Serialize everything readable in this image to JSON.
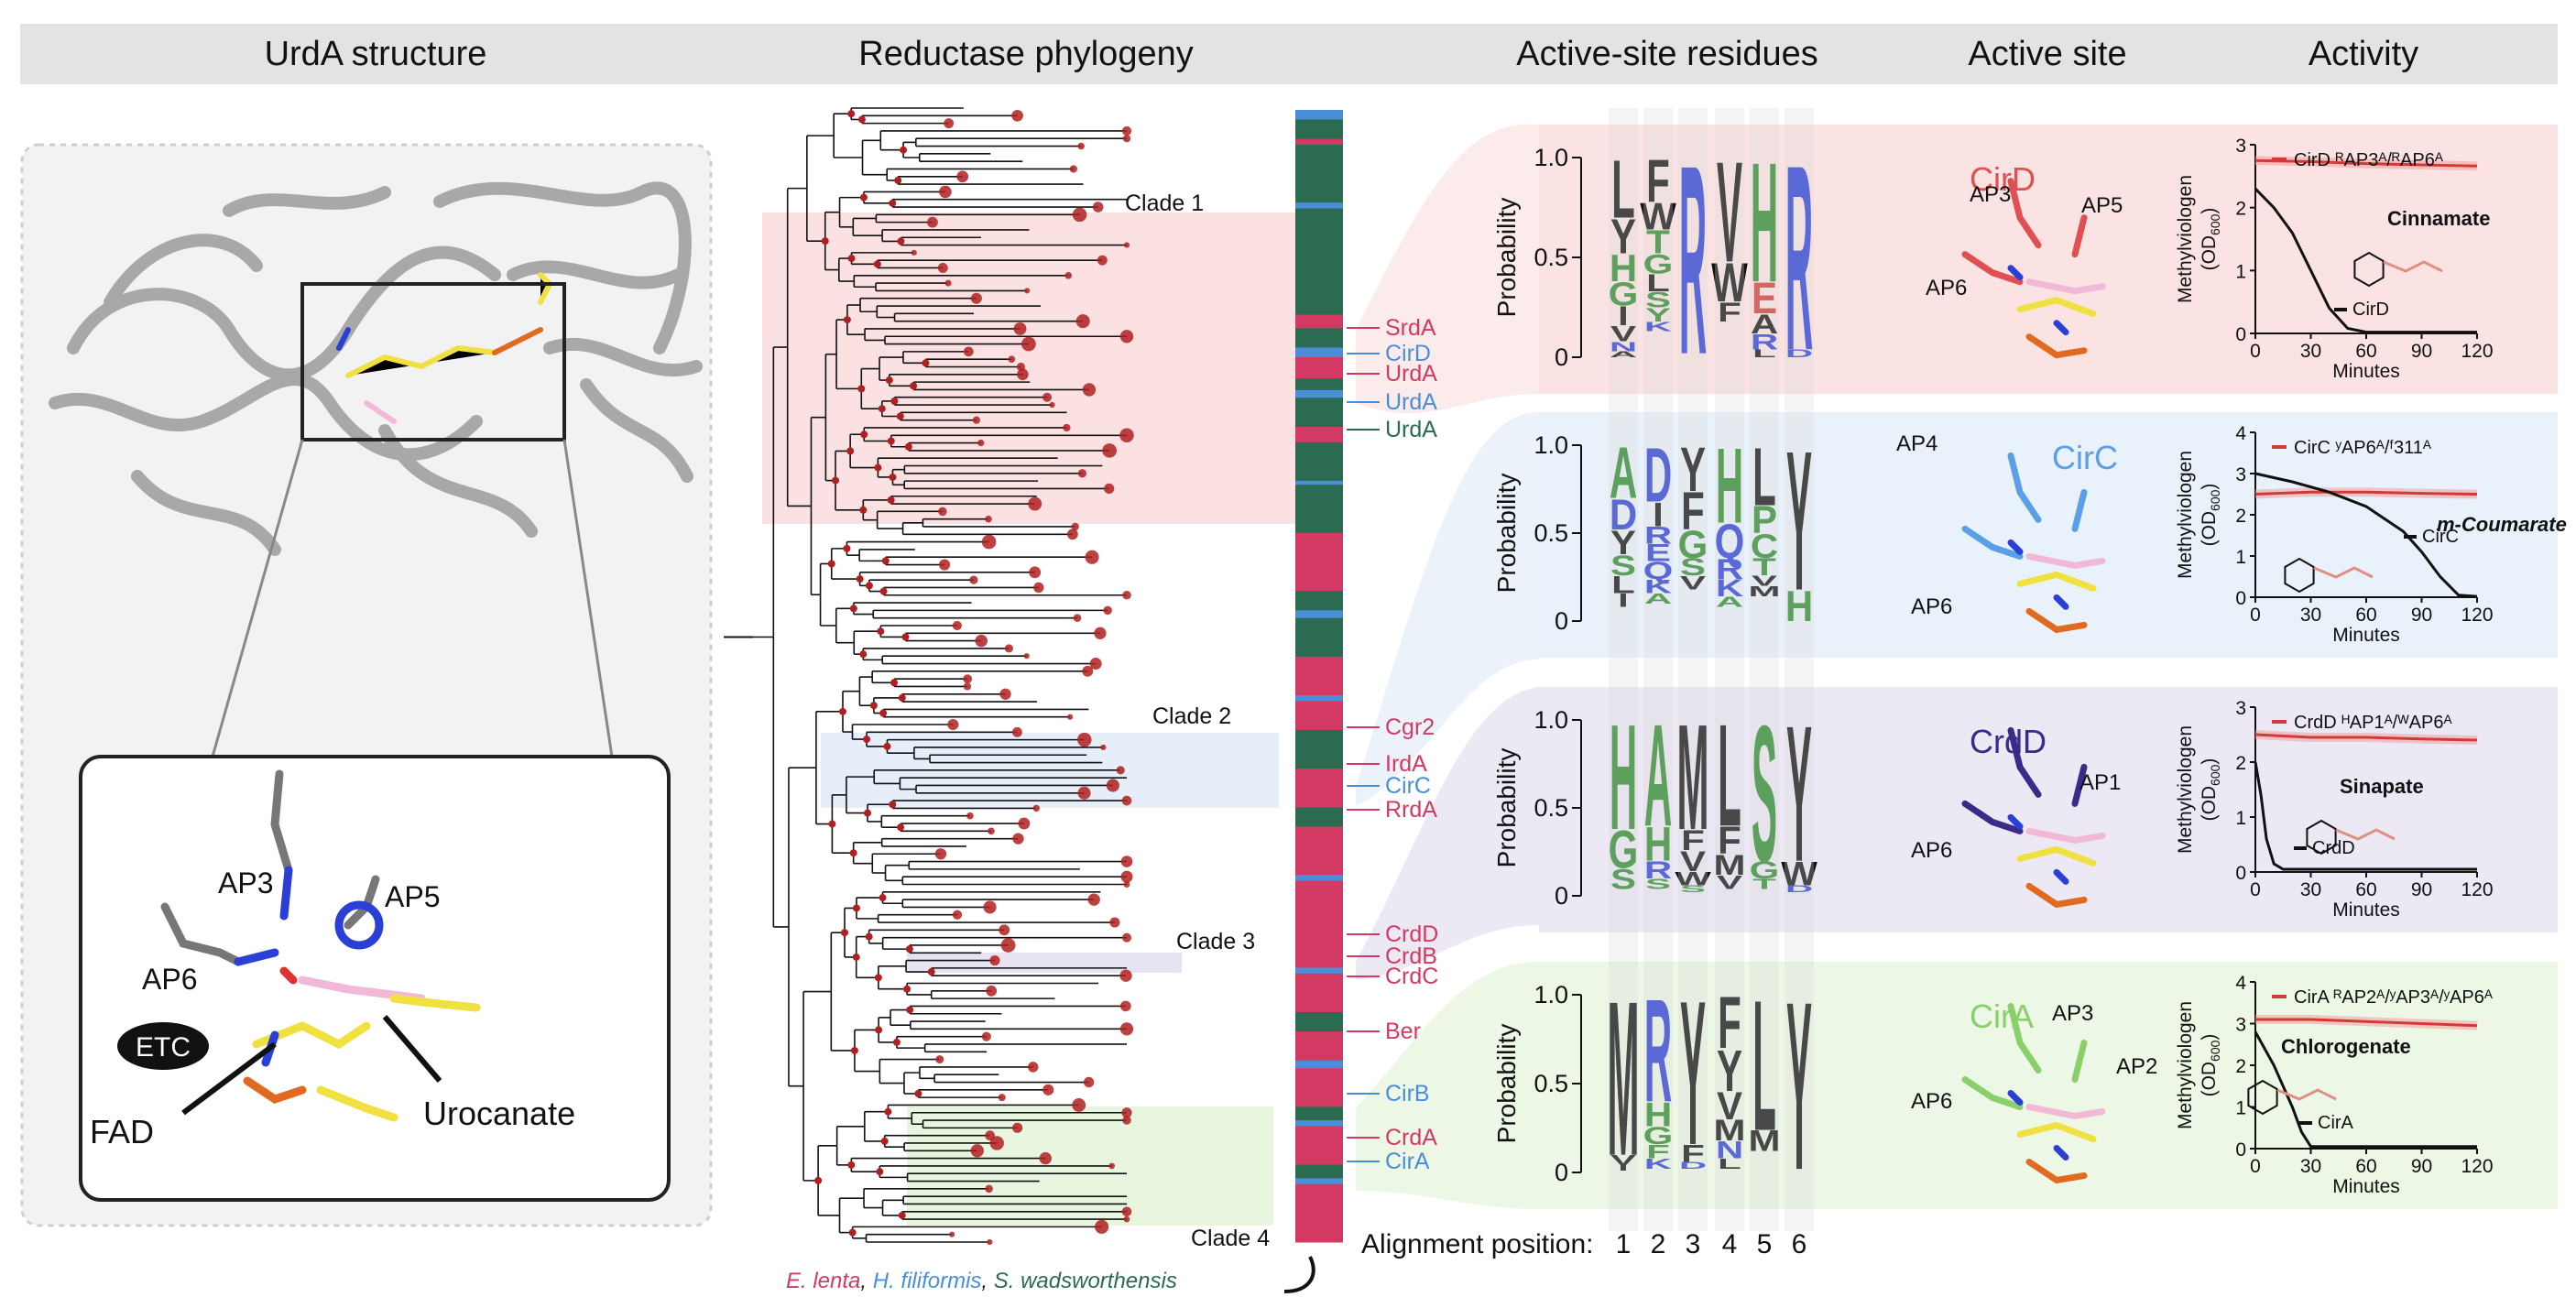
{
  "headers": {
    "structure": "UrdA structure",
    "phylogeny": "Reductase phylogeny",
    "residues": "Active-site residues",
    "active_site": "Active site",
    "activity": "Activity"
  },
  "structure": {
    "labels": {
      "ap3": "AP3",
      "ap5": "AP5",
      "ap6": "AP6",
      "etc": "ETC",
      "fad": "FAD",
      "urocanate": "Urocanate"
    }
  },
  "phylogeny": {
    "clades": [
      "Clade 1",
      "Clade 2",
      "Clade 3",
      "Clade 4"
    ],
    "enzymes": [
      {
        "name": "SrdA",
        "color": "#d23a64"
      },
      {
        "name": "CirD",
        "color": "#4a8ed8"
      },
      {
        "name": "UrdA",
        "color": "#d23a64"
      },
      {
        "name": "UrdA",
        "color": "#4a8ed8"
      },
      {
        "name": "UrdA",
        "color": "#2a6b52"
      },
      {
        "name": "Cgr2",
        "color": "#d23a64"
      },
      {
        "name": "IrdA",
        "color": "#d23a64"
      },
      {
        "name": "CirC",
        "color": "#4a8ed8"
      },
      {
        "name": "RrdA",
        "color": "#d23a64"
      },
      {
        "name": "CrdD",
        "color": "#d23a64"
      },
      {
        "name": "CrdB",
        "color": "#d23a64"
      },
      {
        "name": "CrdC",
        "color": "#d23a64"
      },
      {
        "name": "Ber",
        "color": "#d23a64"
      },
      {
        "name": "CirB",
        "color": "#4a8ed8"
      },
      {
        "name": "CrdA",
        "color": "#d23a64"
      },
      {
        "name": "CirA",
        "color": "#4a8ed8"
      }
    ],
    "legend": [
      {
        "name": "E. lenta",
        "color": "#d23a64"
      },
      {
        "name": ", ",
        "color": "#222222"
      },
      {
        "name": "H. filiformis",
        "color": "#4a8ed8"
      },
      {
        "name": ", ",
        "color": "#222222"
      },
      {
        "name": "S. wadsworthensis",
        "color": "#2a6b52"
      }
    ]
  },
  "residues": {
    "ylabel": "Probability",
    "ticks": [
      "1.0",
      "0.5",
      "0"
    ],
    "alignment_label": "Alignment position:",
    "positions": [
      "1",
      "2",
      "3",
      "4",
      "5",
      "6"
    ],
    "logos": [
      {
        "name": "CirD",
        "columns": [
          [
            {
              "l": "L",
              "c": "#111111",
              "h": 0.3
            },
            {
              "l": "Y",
              "c": "#111111",
              "h": 0.18
            },
            {
              "l": "H",
              "c": "#2e8b2e",
              "h": 0.14
            },
            {
              "l": "G",
              "c": "#2e8b2e",
              "h": 0.12
            },
            {
              "l": "I",
              "c": "#111111",
              "h": 0.1
            },
            {
              "l": "V",
              "c": "#111111",
              "h": 0.08
            },
            {
              "l": "N",
              "c": "#2a3fd6",
              "h": 0.05
            },
            {
              "l": "A",
              "c": "#111111",
              "h": 0.03
            }
          ],
          [
            {
              "l": "F",
              "c": "#111111",
              "h": 0.22
            },
            {
              "l": "W",
              "c": "#111111",
              "h": 0.14
            },
            {
              "l": "T",
              "c": "#2e8b2e",
              "h": 0.12
            },
            {
              "l": "G",
              "c": "#2e8b2e",
              "h": 0.1
            },
            {
              "l": "L",
              "c": "#111111",
              "h": 0.09
            },
            {
              "l": "S",
              "c": "#2e8b2e",
              "h": 0.08
            },
            {
              "l": "Y",
              "c": "#2e8b2e",
              "h": 0.07
            },
            {
              "l": "K",
              "c": "#2a3fd6",
              "h": 0.05
            }
          ],
          [
            {
              "l": "R",
              "c": "#2a3fd6",
              "h": 0.98
            }
          ],
          [
            {
              "l": "V",
              "c": "#111111",
              "h": 0.52
            },
            {
              "l": "W",
              "c": "#111111",
              "h": 0.2
            },
            {
              "l": "F",
              "c": "#111111",
              "h": 0.1
            }
          ],
          [
            {
              "l": "H",
              "c": "#2e8b2e",
              "h": 0.62
            },
            {
              "l": "E",
              "c": "#d23a3a",
              "h": 0.16
            },
            {
              "l": "A",
              "c": "#111111",
              "h": 0.1
            },
            {
              "l": "R",
              "c": "#2a3fd6",
              "h": 0.08
            },
            {
              "l": "L",
              "c": "#111111",
              "h": 0.04
            }
          ],
          [
            {
              "l": "R",
              "c": "#2a3fd6",
              "h": 0.96
            },
            {
              "l": "D",
              "c": "#2a3fd6",
              "h": 0.04
            }
          ]
        ]
      },
      {
        "name": "CirC",
        "columns": [
          [
            {
              "l": "A",
              "c": "#2e8b2e",
              "h": 0.3
            },
            {
              "l": "D",
              "c": "#2a3fd6",
              "h": 0.18
            },
            {
              "l": "Y",
              "c": "#111111",
              "h": 0.14
            },
            {
              "l": "S",
              "c": "#2e8b2e",
              "h": 0.12
            },
            {
              "l": "L",
              "c": "#111111",
              "h": 0.1
            },
            {
              "l": "I",
              "c": "#111111",
              "h": 0.08
            }
          ],
          [
            {
              "l": "D",
              "c": "#2a3fd6",
              "h": 0.32
            },
            {
              "l": "I",
              "c": "#111111",
              "h": 0.14
            },
            {
              "l": "R",
              "c": "#2a3fd6",
              "h": 0.1
            },
            {
              "l": "E",
              "c": "#2a3fd6",
              "h": 0.1
            },
            {
              "l": "Q",
              "c": "#2a3fd6",
              "h": 0.1
            },
            {
              "l": "K",
              "c": "#2a3fd6",
              "h": 0.08
            },
            {
              "l": "A",
              "c": "#2e8b2e",
              "h": 0.06
            }
          ],
          [
            {
              "l": "Y",
              "c": "#111111",
              "h": 0.26
            },
            {
              "l": "F",
              "c": "#111111",
              "h": 0.22
            },
            {
              "l": "G",
              "c": "#2e8b2e",
              "h": 0.16
            },
            {
              "l": "S",
              "c": "#2e8b2e",
              "h": 0.1
            },
            {
              "l": "V",
              "c": "#111111",
              "h": 0.08
            }
          ],
          [
            {
              "l": "H",
              "c": "#2e8b2e",
              "h": 0.44
            },
            {
              "l": "Q",
              "c": "#2a3fd6",
              "h": 0.2
            },
            {
              "l": "R",
              "c": "#2a3fd6",
              "h": 0.12
            },
            {
              "l": "K",
              "c": "#2a3fd6",
              "h": 0.1
            },
            {
              "l": "A",
              "c": "#2e8b2e",
              "h": 0.06
            }
          ],
          [
            {
              "l": "L",
              "c": "#111111",
              "h": 0.34
            },
            {
              "l": "P",
              "c": "#2e8b2e",
              "h": 0.16
            },
            {
              "l": "C",
              "c": "#2e8b2e",
              "h": 0.14
            },
            {
              "l": "T",
              "c": "#2e8b2e",
              "h": 0.1
            },
            {
              "l": "V",
              "c": "#111111",
              "h": 0.06
            },
            {
              "l": "M",
              "c": "#111111",
              "h": 0.06
            }
          ],
          [
            {
              "l": "Y",
              "c": "#111111",
              "h": 0.82
            },
            {
              "l": "H",
              "c": "#2e8b2e",
              "h": 0.18
            }
          ]
        ]
      },
      {
        "name": "CrdD",
        "columns": [
          [
            {
              "l": "H",
              "c": "#2e8b2e",
              "h": 0.62
            },
            {
              "l": "G",
              "c": "#2e8b2e",
              "h": 0.22
            },
            {
              "l": "S",
              "c": "#2e8b2e",
              "h": 0.12
            }
          ],
          [
            {
              "l": "A",
              "c": "#2e8b2e",
              "h": 0.6
            },
            {
              "l": "H",
              "c": "#2e8b2e",
              "h": 0.2
            },
            {
              "l": "R",
              "c": "#2a3fd6",
              "h": 0.1
            },
            {
              "l": "S",
              "c": "#2e8b2e",
              "h": 0.06
            }
          ],
          [
            {
              "l": "M",
              "c": "#111111",
              "h": 0.62
            },
            {
              "l": "F",
              "c": "#111111",
              "h": 0.12
            },
            {
              "l": "V",
              "c": "#111111",
              "h": 0.12
            },
            {
              "l": "W",
              "c": "#111111",
              "h": 0.08
            },
            {
              "l": "S",
              "c": "#2e8b2e",
              "h": 0.04
            }
          ],
          [
            {
              "l": "L",
              "c": "#111111",
              "h": 0.6
            },
            {
              "l": "F",
              "c": "#111111",
              "h": 0.16
            },
            {
              "l": "M",
              "c": "#111111",
              "h": 0.12
            },
            {
              "l": "V",
              "c": "#111111",
              "h": 0.08
            }
          ],
          [
            {
              "l": "S",
              "c": "#2e8b2e",
              "h": 0.8
            },
            {
              "l": "G",
              "c": "#2e8b2e",
              "h": 0.1
            },
            {
              "l": "T",
              "c": "#2e8b2e",
              "h": 0.06
            }
          ],
          [
            {
              "l": "Y",
              "c": "#111111",
              "h": 0.8
            },
            {
              "l": "W",
              "c": "#111111",
              "h": 0.14
            },
            {
              "l": "D",
              "c": "#2a3fd6",
              "h": 0.04
            }
          ]
        ]
      },
      {
        "name": "CirA",
        "columns": [
          [
            {
              "l": "M",
              "c": "#111111",
              "h": 0.9
            },
            {
              "l": "V",
              "c": "#111111",
              "h": 0.06
            },
            {
              "l": "I",
              "c": "#111111",
              "h": 0.03
            }
          ],
          [
            {
              "l": "R",
              "c": "#2a3fd6",
              "h": 0.6
            },
            {
              "l": "H",
              "c": "#2e8b2e",
              "h": 0.14
            },
            {
              "l": "G",
              "c": "#2e8b2e",
              "h": 0.1
            },
            {
              "l": "F",
              "c": "#2e8b2e",
              "h": 0.08
            },
            {
              "l": "K",
              "c": "#2a3fd6",
              "h": 0.06
            }
          ],
          [
            {
              "l": "Y",
              "c": "#111111",
              "h": 0.84
            },
            {
              "l": "F",
              "c": "#111111",
              "h": 0.1
            },
            {
              "l": "D",
              "c": "#2a3fd6",
              "h": 0.04
            }
          ],
          [
            {
              "l": "F",
              "c": "#111111",
              "h": 0.3
            },
            {
              "l": "Y",
              "c": "#111111",
              "h": 0.24
            },
            {
              "l": "V",
              "c": "#111111",
              "h": 0.16
            },
            {
              "l": "M",
              "c": "#111111",
              "h": 0.12
            },
            {
              "l": "N",
              "c": "#2a3fd6",
              "h": 0.1
            },
            {
              "l": "L",
              "c": "#111111",
              "h": 0.06
            }
          ],
          [
            {
              "l": "L",
              "c": "#111111",
              "h": 0.76
            },
            {
              "l": "M",
              "c": "#111111",
              "h": 0.12
            }
          ],
          [
            {
              "l": "Y",
              "c": "#111111",
              "h": 0.98
            }
          ]
        ]
      }
    ]
  },
  "active_site": {
    "panels": [
      {
        "enzyme": "CirD",
        "color": "#e05050",
        "labels": [
          "AP3",
          "AP5",
          "AP6"
        ]
      },
      {
        "enzyme": "CirC",
        "color": "#5aa0e8",
        "labels": [
          "AP4",
          "AP6"
        ]
      },
      {
        "enzyme": "CrdD",
        "color": "#3a2a8a",
        "labels": [
          "AP1",
          "AP6"
        ]
      },
      {
        "enzyme": "CirA",
        "color": "#8ad06a",
        "labels": [
          "AP3",
          "AP2",
          "AP6"
        ]
      }
    ]
  },
  "activity": {
    "ylabel_line1": "Methylviologen",
    "ylabel_line2": "(OD",
    "ylabel_sub": "600",
    "ylabel_end": ")",
    "xlabel": "Minutes",
    "xticks": [
      "0",
      "30",
      "60",
      "90",
      "120"
    ],
    "panels": [
      {
        "substrate": "Cinnamate",
        "italic": false,
        "wt": "CirD",
        "mut_name": "CirD",
        "mut_suffix": "ᴿAP3ᴬ/ᴿAP6ᴬ",
        "yticks": [
          "3",
          "2",
          "1",
          "0"
        ]
      },
      {
        "substrate": "m-Coumarate",
        "italic": true,
        "wt": "CirC",
        "mut_name": "CirC",
        "mut_suffix": "ʸAP6ᴬ/ᶠ311ᴬ",
        "yticks": [
          "4",
          "3",
          "2",
          "1",
          "0"
        ]
      },
      {
        "substrate": "Sinapate",
        "italic": false,
        "wt": "CrdD",
        "mut_name": "CrdD",
        "mut_suffix": "ᴴAP1ᴬ/ᵂAP6ᴬ",
        "yticks": [
          "3",
          "2",
          "1",
          "0"
        ]
      },
      {
        "substrate": "Chlorogenate",
        "italic": false,
        "wt": "CirA",
        "mut_name": "CirA",
        "mut_suffix": "ᴿAP2ᴬ/ʸAP3ᴬ/ʸAP6ᴬ",
        "yticks": [
          "4",
          "3",
          "2",
          "1",
          "0"
        ]
      }
    ]
  },
  "chart_data": [
    {
      "type": "line",
      "title": "Cinnamate",
      "xlabel": "Minutes",
      "ylabel": "Methylviologen (OD600)",
      "xlim": [
        0,
        120
      ],
      "ylim": [
        0,
        3
      ],
      "series": [
        {
          "name": "CirD ᴿAP3ᴬ/ᴿAP6ᴬ",
          "color": "#d23a3a",
          "x": [
            0,
            30,
            60,
            90,
            120
          ],
          "y": [
            2.75,
            2.73,
            2.7,
            2.68,
            2.66
          ]
        },
        {
          "name": "CirD",
          "color": "#111111",
          "x": [
            0,
            10,
            20,
            30,
            40,
            50,
            60,
            120
          ],
          "y": [
            2.3,
            2.0,
            1.6,
            1.0,
            0.4,
            0.08,
            0.02,
            0.02
          ]
        }
      ]
    },
    {
      "type": "line",
      "title": "m-Coumarate",
      "xlabel": "Minutes",
      "ylabel": "Methylviologen (OD600)",
      "xlim": [
        0,
        120
      ],
      "ylim": [
        0,
        4
      ],
      "series": [
        {
          "name": "CirC ʸAP6ᴬ/ᶠ311ᴬ",
          "color": "#d23a3a",
          "x": [
            0,
            30,
            60,
            90,
            120
          ],
          "y": [
            2.5,
            2.55,
            2.55,
            2.52,
            2.5
          ]
        },
        {
          "name": "CirC",
          "color": "#111111",
          "x": [
            0,
            20,
            40,
            60,
            80,
            90,
            100,
            110,
            120
          ],
          "y": [
            3.0,
            2.8,
            2.55,
            2.2,
            1.6,
            1.1,
            0.5,
            0.05,
            0.02
          ]
        }
      ]
    },
    {
      "type": "line",
      "title": "Sinapate",
      "xlabel": "Minutes",
      "ylabel": "Methylviologen (OD600)",
      "xlim": [
        0,
        120
      ],
      "ylim": [
        0,
        3
      ],
      "series": [
        {
          "name": "CrdD ᴴAP1ᴬ/ᵂAP6ᴬ",
          "color": "#d23a3a",
          "x": [
            0,
            30,
            60,
            90,
            120
          ],
          "y": [
            2.5,
            2.45,
            2.45,
            2.42,
            2.4
          ]
        },
        {
          "name": "CrdD",
          "color": "#111111",
          "x": [
            0,
            3,
            6,
            10,
            15,
            30,
            120
          ],
          "y": [
            2.0,
            1.4,
            0.6,
            0.15,
            0.05,
            0.05,
            0.05
          ]
        }
      ]
    },
    {
      "type": "line",
      "title": "Chlorogenate",
      "xlabel": "Minutes",
      "ylabel": "Methylviologen (OD600)",
      "xlim": [
        0,
        120
      ],
      "ylim": [
        0,
        4
      ],
      "series": [
        {
          "name": "CirA ᴿAP2ᴬ/ʸAP3ᴬ/ʸAP6ᴬ",
          "color": "#d23a3a",
          "x": [
            0,
            30,
            60,
            90,
            120
          ],
          "y": [
            3.1,
            3.1,
            3.05,
            3.0,
            2.95
          ]
        },
        {
          "name": "CirA",
          "color": "#111111",
          "x": [
            0,
            10,
            20,
            25,
            30,
            120
          ],
          "y": [
            2.8,
            2.0,
            1.0,
            0.4,
            0.05,
            0.05
          ]
        }
      ]
    }
  ]
}
